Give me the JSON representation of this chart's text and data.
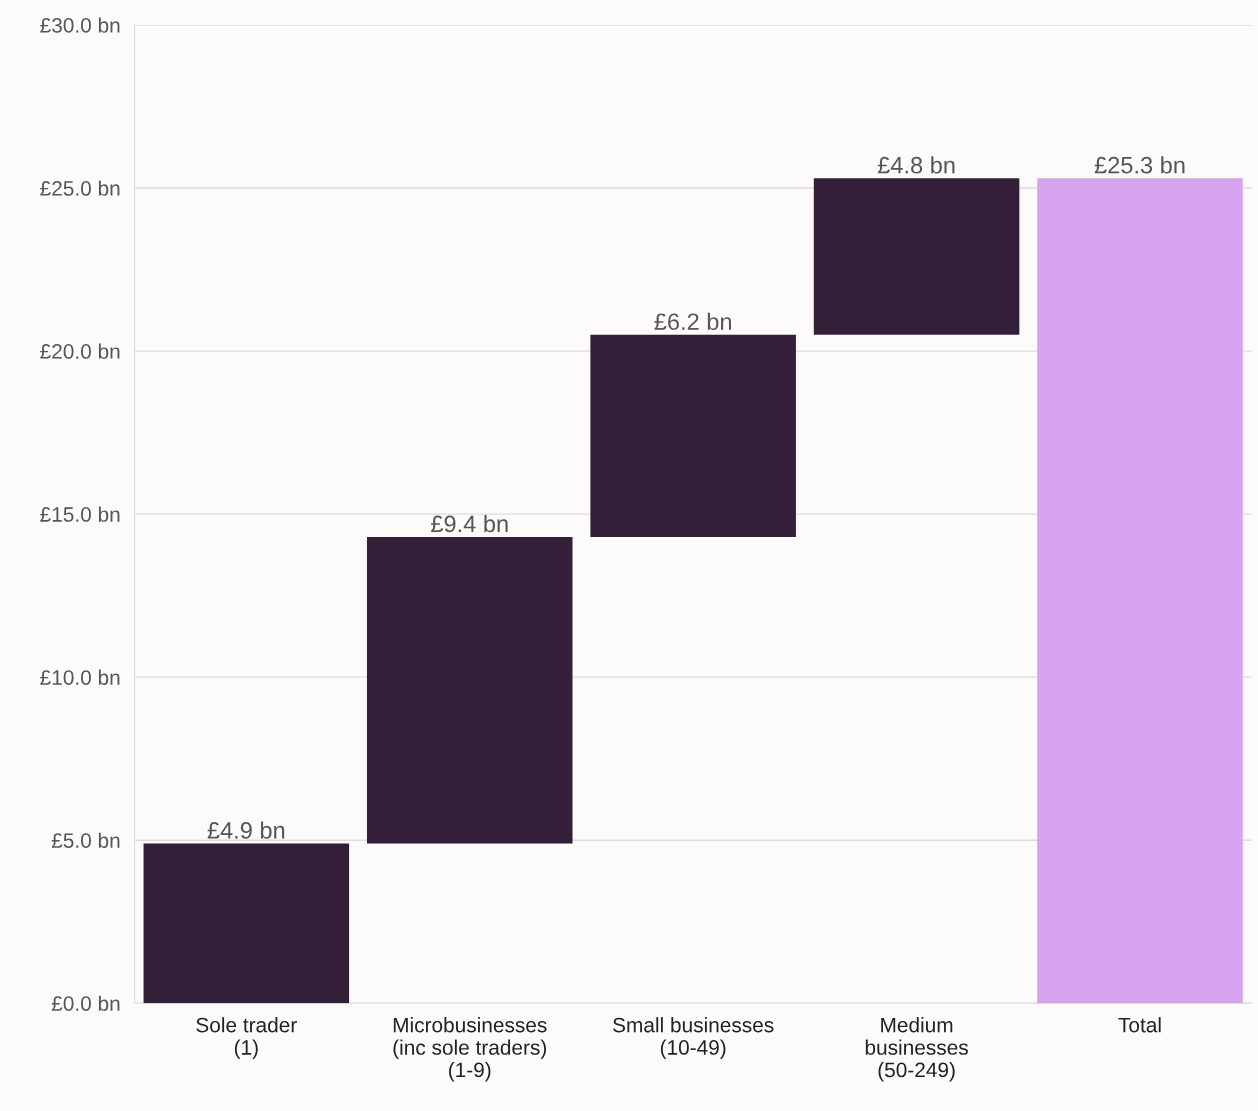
{
  "chart_data": {
    "type": "bar",
    "categories": [
      "Sole trader\n(1)",
      "Microbusinesses\n(inc sole traders)\n(1-9)",
      "Small businesses\n(10-49)",
      "Medium\nbusinesses\n(50-249)",
      "Total"
    ],
    "values": [
      4.9,
      9.4,
      6.2,
      4.8,
      25.3
    ],
    "base": [
      0,
      4.9,
      14.3,
      20.5,
      0
    ],
    "colors": [
      "#331f38",
      "#331f38",
      "#331f38",
      "#331f38",
      "#d6a4ee"
    ],
    "value_labels": [
      "£4.9 bn",
      "£9.4 bn",
      "£6.2 bn",
      "£4.8 bn",
      "£25.3 bn"
    ],
    "ylim": [
      0,
      30
    ],
    "yticks": [
      {
        "value": 0,
        "label": "£0.0 bn"
      },
      {
        "value": 5,
        "label": "£5.0 bn"
      },
      {
        "value": 10,
        "label": "£10.0 bn"
      },
      {
        "value": 15,
        "label": "£15.0 bn"
      },
      {
        "value": 20,
        "label": "£20.0 bn"
      },
      {
        "value": 25,
        "label": "£25.0 bn"
      },
      {
        "value": 30,
        "label": "£30.0 bn"
      }
    ],
    "grid": "y"
  }
}
